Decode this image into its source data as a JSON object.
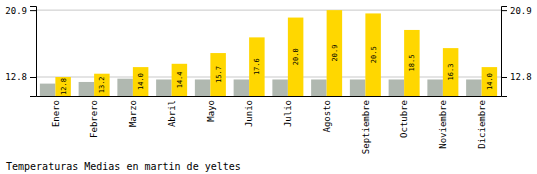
{
  "chart_data": {
    "type": "bar",
    "title": "Temperaturas Medias en martin de yeltes",
    "categories": [
      "Enero",
      "Febrero",
      "Marzo",
      "Abril",
      "Mayo",
      "Junio",
      "Julio",
      "Agosto",
      "Septiembre",
      "Octubre",
      "Noviembre",
      "Diciembre"
    ],
    "series": [
      {
        "color": "#B0B8B0",
        "values": [
          12.0,
          12.2,
          12.6,
          12.5,
          12.5,
          12.5,
          12.5,
          12.5,
          12.5,
          12.5,
          12.5,
          12.5
        ]
      },
      {
        "color": "#FFD700",
        "values": [
          12.8,
          13.2,
          14.0,
          14.4,
          15.7,
          17.6,
          20.0,
          20.9,
          20.5,
          18.5,
          16.3,
          14.0
        ],
        "data_labels": true,
        "value_labels": [
          "12.8",
          "13.2",
          "14.0",
          "14.4",
          "15.7",
          "17.6",
          "20.0",
          "20.9",
          "20.5",
          "18.5",
          "16.3",
          "14.0"
        ]
      }
    ],
    "ylim": [
      10.5,
      21.4
    ],
    "yticks": [
      12.8,
      20.9
    ],
    "grid": true
  }
}
